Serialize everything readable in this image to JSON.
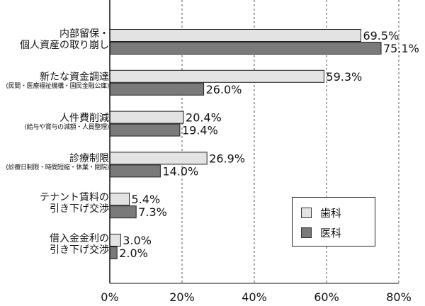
{
  "chart_data": {
    "type": "bar",
    "orientation": "horizontal",
    "categories": [
      {
        "label": "内部留保・",
        "label2": "個人資産の取り崩し",
        "sub": ""
      },
      {
        "label": "新たな資金調達",
        "label2": "",
        "sub": "(民間・医療福祉機構・国民金融公庫)"
      },
      {
        "label": "人件費削減",
        "label2": "",
        "sub": "(給与や賞与の減額・人員整理)"
      },
      {
        "label": "診療制限",
        "label2": "",
        "sub": "(診療日制限・時間短縮・休業・閉院)"
      },
      {
        "label": "テナント賃料の",
        "label2": "引き下げ交渉",
        "sub": ""
      },
      {
        "label": "借入金金利の",
        "label2": "引き下げ交渉",
        "sub": ""
      }
    ],
    "series": [
      {
        "name": "歯科",
        "color": "#e3e3e3",
        "values": [
          69.5,
          59.3,
          20.4,
          26.9,
          5.4,
          3.0
        ],
        "labels": [
          "69.5%",
          "59.3%",
          "20.4%",
          "26.9%",
          "5.4%",
          "3.0%"
        ]
      },
      {
        "name": "医科",
        "color": "#7a7a7a",
        "values": [
          75.1,
          26.0,
          19.4,
          14.0,
          7.3,
          2.0
        ],
        "labels": [
          "75.1%",
          "26.0%",
          "19.4%",
          "14.0%",
          "7.3%",
          "2.0%"
        ]
      }
    ],
    "xlim": [
      0,
      80
    ],
    "xticks": [
      "0%",
      "20%",
      "40%",
      "60%",
      "80%"
    ],
    "grid": "vertical-dashed",
    "legend_position": "bottom-right"
  }
}
